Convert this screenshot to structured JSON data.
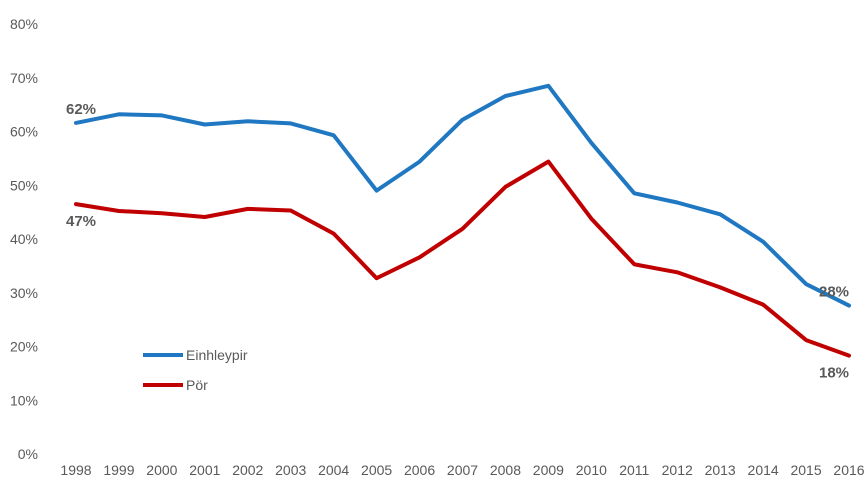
{
  "chart_data": {
    "type": "line",
    "x": [
      "1998",
      "1999",
      "2000",
      "2001",
      "2002",
      "2003",
      "2004",
      "2005",
      "2006",
      "2007",
      "2008",
      "2009",
      "2010",
      "2011",
      "2012",
      "2013",
      "2014",
      "2015",
      "2016"
    ],
    "ylim": [
      0,
      80
    ],
    "yticks": [
      0,
      10,
      20,
      30,
      40,
      50,
      60,
      70,
      80
    ],
    "ytick_labels": [
      "0%",
      "10%",
      "20%",
      "30%",
      "40%",
      "50%",
      "60%",
      "70%",
      "80%"
    ],
    "grid": false,
    "legend_position": "left-lower",
    "series": [
      {
        "name": "Einhleypir",
        "color": "#1f78c1",
        "values": [
          61.6,
          63.2,
          63.0,
          61.3,
          61.9,
          61.5,
          59.3,
          49.0,
          54.4,
          62.2,
          66.6,
          68.5,
          57.9,
          48.5,
          46.8,
          44.6,
          39.5,
          31.6,
          27.6
        ],
        "labels": [
          {
            "index": 0,
            "text": "62%",
            "position": "above"
          },
          {
            "index": 18,
            "text": "28%",
            "position": "above"
          }
        ]
      },
      {
        "name": "Pör",
        "color": "#c00000",
        "values": [
          46.5,
          45.2,
          44.8,
          44.1,
          45.6,
          45.3,
          41.0,
          32.7,
          36.6,
          41.9,
          49.7,
          54.4,
          43.8,
          35.3,
          33.8,
          31.0,
          27.8,
          21.2,
          18.3
        ],
        "labels": [
          {
            "index": 0,
            "text": "47%",
            "position": "below"
          },
          {
            "index": 18,
            "text": "18%",
            "position": "below"
          }
        ]
      }
    ]
  }
}
